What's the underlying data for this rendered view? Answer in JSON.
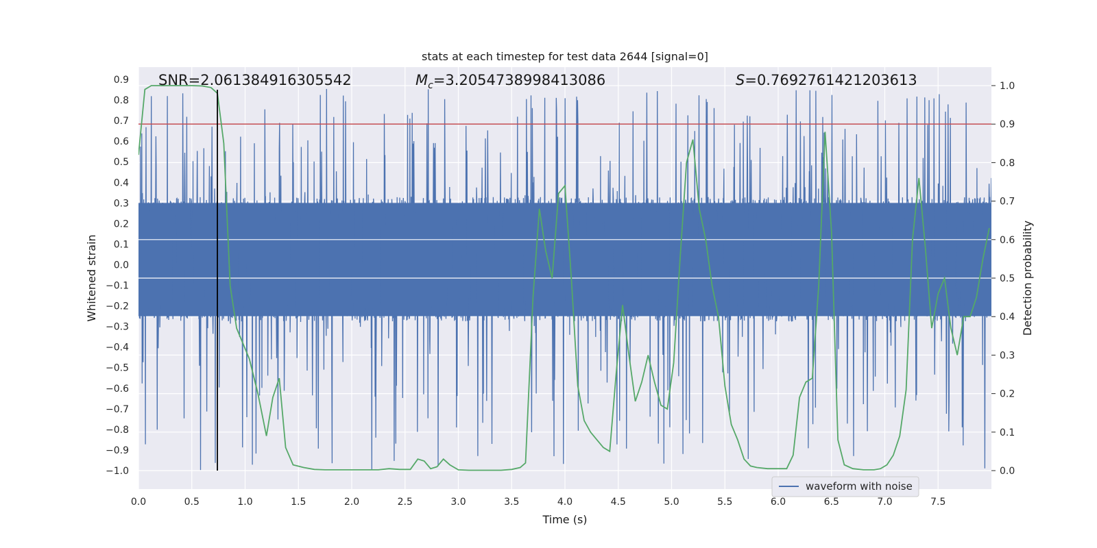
{
  "chart_data": {
    "type": "line",
    "title": "stats at each timestep for test data 2644 [signal=0]",
    "xlabel": "Time (s)",
    "ylabel": "Whitened strain",
    "y2label": "Detection probability",
    "xlim": [
      0.0,
      8.0
    ],
    "ylim": [
      -1.09,
      0.96
    ],
    "y2lim": [
      -0.048,
      1.048
    ],
    "xticks": [
      "0.0",
      "0.5",
      "1.0",
      "1.5",
      "2.0",
      "2.5",
      "3.0",
      "3.5",
      "4.0",
      "4.5",
      "5.0",
      "5.5",
      "6.0",
      "6.5",
      "7.0",
      "7.5"
    ],
    "yticks": [
      "0.9",
      "0.8",
      "0.7",
      "0.6",
      "0.5",
      "0.4",
      "0.3",
      "0.2",
      "0.1",
      "0.0",
      "−0.1",
      "−0.2",
      "−0.3",
      "−0.4",
      "−0.5",
      "−0.6",
      "−0.7",
      "−0.8",
      "−0.9",
      "−1.0"
    ],
    "y2ticks": [
      "1.0",
      "0.9",
      "0.8",
      "0.7",
      "0.6",
      "0.5",
      "0.4",
      "0.3",
      "0.2",
      "0.1",
      "0.0"
    ],
    "grid": true,
    "legend_position": "lower-right",
    "annotations": {
      "snr": "SNR=2.061384916305542",
      "mc_symbol": "M",
      "mc_sub": "c",
      "mc_value": "=3.2054738998413086",
      "s_symbol": "S",
      "s_value": "=0.7692761421203613"
    },
    "threshold": {
      "axis": "right",
      "value": 0.9,
      "color": "#c44e52"
    },
    "marker_line": {
      "x": 0.74,
      "y_from": -1.0,
      "y_to": 0.85,
      "color": "#000000"
    },
    "series": [
      {
        "name": "waveform with noise",
        "axis": "left",
        "kind": "noisy-strain",
        "color": "#4c72b0",
        "envelope": {
          "core_low": -0.25,
          "core_high": 0.3,
          "spike_max": 0.86,
          "spike_min": -1.0
        }
      },
      {
        "axis": "right",
        "kind": "probability",
        "color": "#55a868",
        "x": [
          0.0,
          0.06,
          0.12,
          0.2,
          0.3,
          0.4,
          0.5,
          0.6,
          0.68,
          0.74,
          0.8,
          0.86,
          0.92,
          0.98,
          1.04,
          1.12,
          1.2,
          1.26,
          1.32,
          1.38,
          1.45,
          1.55,
          1.65,
          1.75,
          1.85,
          1.95,
          2.05,
          2.15,
          2.25,
          2.35,
          2.45,
          2.55,
          2.62,
          2.68,
          2.74,
          2.8,
          2.86,
          2.92,
          3.0,
          3.1,
          3.2,
          3.3,
          3.4,
          3.5,
          3.58,
          3.63,
          3.7,
          3.76,
          3.82,
          3.88,
          3.94,
          4.0,
          4.06,
          4.12,
          4.18,
          4.24,
          4.3,
          4.36,
          4.42,
          4.48,
          4.54,
          4.6,
          4.66,
          4.72,
          4.78,
          4.84,
          4.9,
          4.96,
          5.02,
          5.08,
          5.14,
          5.2,
          5.26,
          5.32,
          5.38,
          5.44,
          5.5,
          5.56,
          5.62,
          5.68,
          5.74,
          5.8,
          5.9,
          6.0,
          6.08,
          6.14,
          6.2,
          6.26,
          6.32,
          6.38,
          6.44,
          6.5,
          6.56,
          6.62,
          6.7,
          6.8,
          6.9,
          6.96,
          7.02,
          7.08,
          7.14,
          7.2,
          7.26,
          7.32,
          7.38,
          7.44,
          7.5,
          7.56,
          7.62,
          7.68,
          7.74,
          7.8,
          7.86,
          7.92,
          7.98
        ],
        "values": [
          0.82,
          0.99,
          1.0,
          1.0,
          1.0,
          1.0,
          1.0,
          0.999,
          0.995,
          0.98,
          0.85,
          0.48,
          0.37,
          0.33,
          0.29,
          0.2,
          0.09,
          0.19,
          0.24,
          0.06,
          0.015,
          0.008,
          0.003,
          0.002,
          0.002,
          0.002,
          0.002,
          0.002,
          0.002,
          0.005,
          0.003,
          0.003,
          0.03,
          0.025,
          0.005,
          0.01,
          0.03,
          0.015,
          0.002,
          0.001,
          0.001,
          0.001,
          0.001,
          0.003,
          0.008,
          0.02,
          0.45,
          0.68,
          0.57,
          0.5,
          0.72,
          0.74,
          0.5,
          0.22,
          0.13,
          0.1,
          0.08,
          0.06,
          0.05,
          0.25,
          0.43,
          0.3,
          0.18,
          0.23,
          0.3,
          0.23,
          0.17,
          0.16,
          0.28,
          0.55,
          0.8,
          0.86,
          0.68,
          0.6,
          0.48,
          0.4,
          0.22,
          0.12,
          0.08,
          0.03,
          0.012,
          0.008,
          0.005,
          0.005,
          0.005,
          0.04,
          0.19,
          0.23,
          0.24,
          0.48,
          0.88,
          0.62,
          0.08,
          0.015,
          0.005,
          0.002,
          0.002,
          0.005,
          0.015,
          0.04,
          0.09,
          0.21,
          0.6,
          0.76,
          0.58,
          0.37,
          0.46,
          0.5,
          0.37,
          0.3,
          0.4,
          0.4,
          0.45,
          0.55,
          0.63
        ]
      }
    ]
  }
}
